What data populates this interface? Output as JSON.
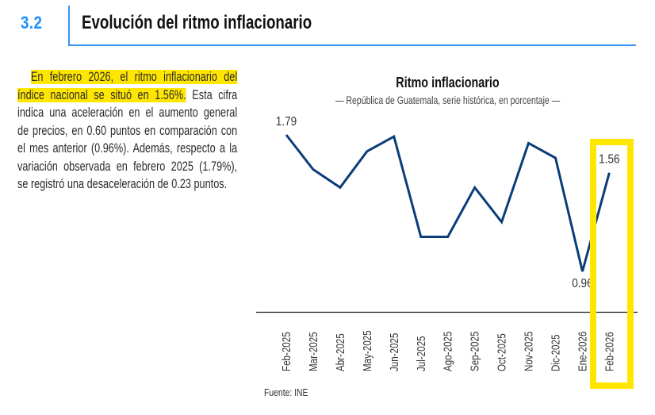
{
  "header": {
    "section_number": "3.2",
    "section_title": "Evolución del ritmo inflacionario"
  },
  "paragraph": {
    "lines": [
      {
        "text": "En febrero 2026, el ritmo inflacionario del",
        "highlight": true
      },
      {
        "text": "índice nacional se situó en 1.56%.",
        "highlight": true,
        "rest": " Esta cifra"
      },
      {
        "text": "indica una aceleración en el aumento general",
        "highlight": false
      },
      {
        "text": "de precios, en 0.60 puntos en comparación con",
        "highlight": false
      },
      {
        "text": "el mes anterior (0.96%). Además, respecto a la",
        "highlight": false
      },
      {
        "text": "variación observada en febrero 2025 (1.79%),",
        "highlight": false
      },
      {
        "text": "se registró una desaceleración de 0.23 puntos.",
        "highlight": false
      }
    ]
  },
  "colors": {
    "accent_blue": "#1e90ff",
    "line_series": "#0b3d7a",
    "highlight_yellow": "#ffe600"
  },
  "source": "Fuente: INE",
  "chart_data": {
    "type": "line",
    "title": "Ritmo inflacionario",
    "subtitle": "— República de Guatemala, serie histórica, en porcentaje —",
    "xlabel": "",
    "ylabel": "",
    "categories": [
      "Feb-2025",
      "Mar-2025",
      "Abr-2025",
      "May-2025",
      "Jun-2025",
      "Jul-2025",
      "Ago-2025",
      "Sep-2025",
      "Oct-2025",
      "Nov-2025",
      "Dic-2025",
      "Ene-2026",
      "Feb-2026"
    ],
    "series": [
      {
        "name": "Ritmo inflacionario",
        "values": [
          1.79,
          1.58,
          1.47,
          1.69,
          1.78,
          1.17,
          1.17,
          1.47,
          1.26,
          1.74,
          1.65,
          0.96,
          1.56
        ]
      }
    ],
    "data_labels": [
      {
        "category": "Feb-2025",
        "label": "1.79"
      },
      {
        "category": "Ene-2026",
        "label": "0.96"
      },
      {
        "category": "Feb-2026",
        "label": "1.56"
      }
    ],
    "highlighted_category": "Feb-2026",
    "grid": false,
    "legend": "none"
  }
}
